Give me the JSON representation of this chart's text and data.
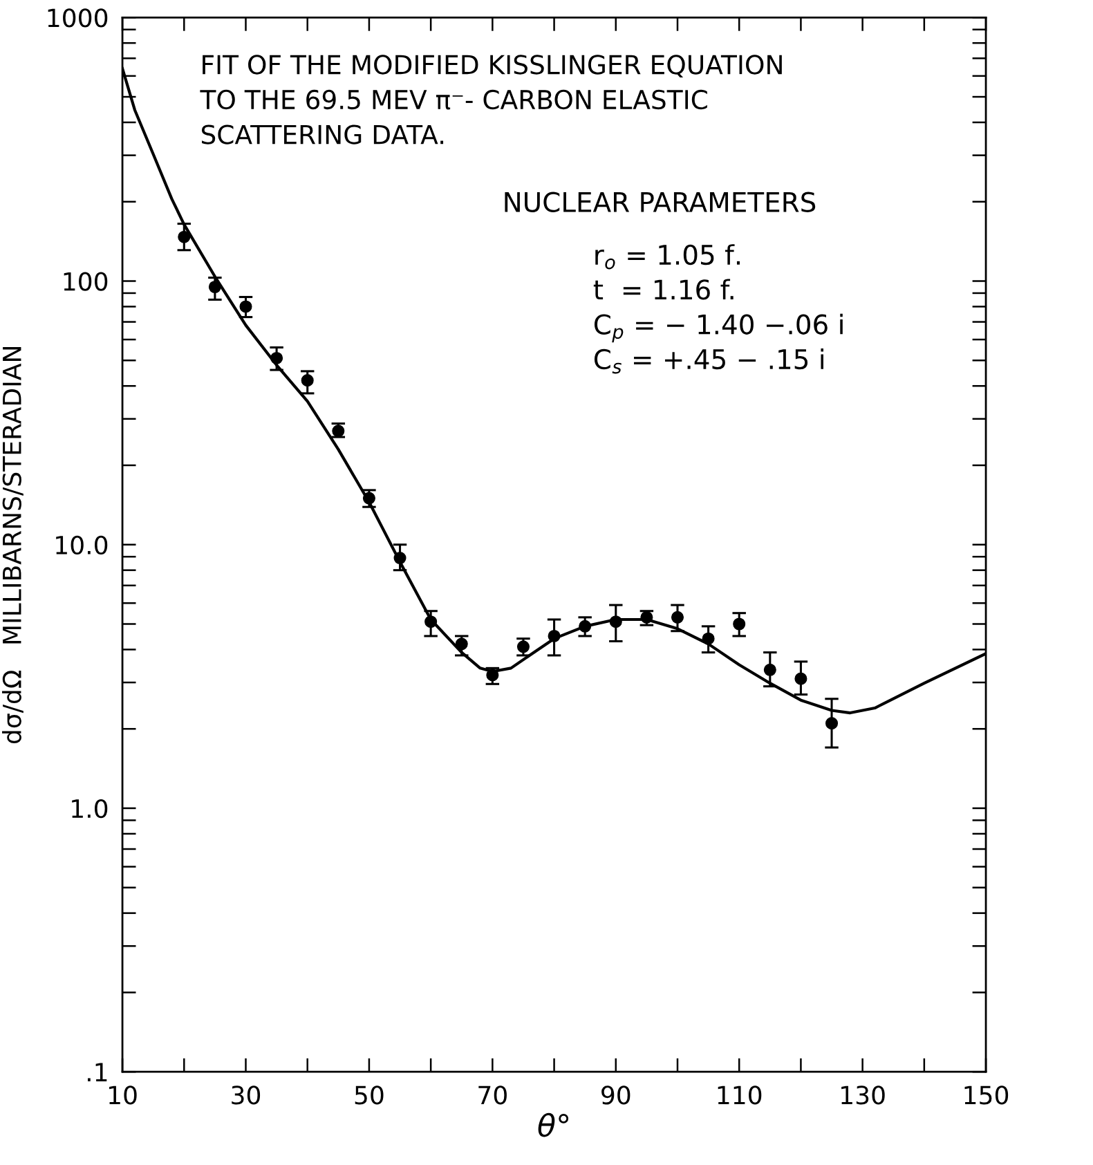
{
  "chart_data": {
    "type": "scatter",
    "title": "FIT OF THE MODIFIED KISSLINGER EQUATION\nTO THE 69.5 MEV π⁻- CARBON ELASTIC\nSCATTERING DATA.",
    "xlabel": "θ°",
    "ylabel": "dσ/dΩ   MILLIBARNS/STERADIAN",
    "annotations": [
      "NUCLEAR PARAMETERS",
      "r$_{o}$ = 1.05 f.",
      "t  = 1.16 f.",
      "C$_{p}$ = − 1.40 −.06 i",
      "C$_{s}$ = +.45 − .15 i"
    ],
    "log": "y",
    "grid": false,
    "marker": "circle",
    "xlim": [
      10,
      150
    ],
    "ylim": [
      0.1,
      1000
    ],
    "xticks": [
      10,
      30,
      50,
      70,
      90,
      110,
      130,
      150
    ],
    "yticks": [
      {
        "value": 0.1,
        "label": ".1"
      },
      {
        "value": 1,
        "label": "1.0"
      },
      {
        "value": 10,
        "label": "10.0"
      },
      100,
      1000
    ],
    "series": [
      {
        "color": "#000000",
        "x": [
          20,
          25,
          30,
          35,
          40,
          45,
          50,
          55,
          60,
          65,
          70,
          75,
          80,
          85,
          90,
          95,
          100,
          105,
          110,
          115,
          120,
          125
        ],
        "values": [
          147,
          95,
          80,
          51,
          42,
          27,
          15,
          8.9,
          5.1,
          4.2,
          3.2,
          4.1,
          4.5,
          4.9,
          5.1,
          5.3,
          5.3,
          4.4,
          5.0,
          3.35,
          3.1,
          2.1
        ],
        "errors": [
          [
            131,
            165
          ],
          [
            85,
            103
          ],
          [
            73,
            87
          ],
          [
            46,
            56
          ],
          [
            37.5,
            45.5
          ],
          [
            25.6,
            28.8
          ],
          [
            13.9,
            16.1
          ],
          [
            8.0,
            10.0
          ],
          [
            4.5,
            5.6
          ],
          [
            3.8,
            4.5
          ],
          [
            2.96,
            3.4
          ],
          [
            3.8,
            4.4
          ],
          [
            3.8,
            5.2
          ],
          [
            4.5,
            5.3
          ],
          [
            4.3,
            5.9
          ],
          [
            4.95,
            5.6
          ],
          [
            4.7,
            5.9
          ],
          [
            3.9,
            4.9
          ],
          [
            4.5,
            5.5
          ],
          [
            2.9,
            3.9
          ],
          [
            2.7,
            3.6
          ],
          [
            1.7,
            2.6
          ]
        ]
      },
      {
        "type": "line",
        "color": "#000000",
        "marker": "none",
        "line_style": "solid",
        "x": [
          10,
          12,
          15,
          18,
          20,
          25,
          30,
          35,
          40,
          45,
          50,
          55,
          60,
          65,
          68,
          70,
          73,
          76,
          80,
          85,
          90,
          95,
          100,
          105,
          110,
          115,
          120,
          125,
          128,
          132,
          140,
          150
        ],
        "values": [
          640,
          446,
          303,
          205,
          164,
          104,
          68,
          48,
          35,
          23,
          14.5,
          8.6,
          5.2,
          3.9,
          3.4,
          3.3,
          3.4,
          3.8,
          4.4,
          4.9,
          5.2,
          5.2,
          4.8,
          4.2,
          3.5,
          2.98,
          2.57,
          2.35,
          2.3,
          2.4,
          2.98,
          3.86
        ]
      }
    ]
  }
}
